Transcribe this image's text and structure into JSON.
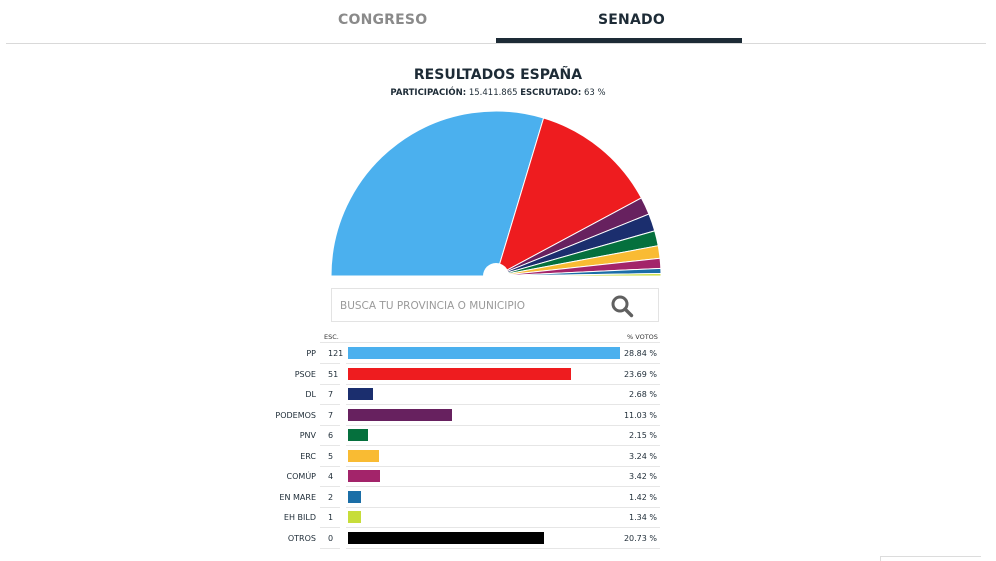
{
  "tabs": [
    {
      "label": "CONGRESO",
      "active": false
    },
    {
      "label": "SENADO",
      "active": true
    }
  ],
  "header": {
    "title": "RESULTADOS ESPAÑA",
    "participacion_label": "PARTICIPACIÓN:",
    "participacion_value": "15.411.865",
    "escrutado_label": "ESCRUTADO:",
    "escrutado_value": "63 %"
  },
  "search": {
    "placeholder": "BUSCA TU PROVINCIA O MUNICIPIO",
    "value": ""
  },
  "table": {
    "seats_header": "ESC.",
    "votes_header": "% VOTOS"
  },
  "chart_data": {
    "type": "bar",
    "title": "RESULTADOS ESPAÑA",
    "categories": [
      "PP",
      "PSOE",
      "DL",
      "PODEMOS",
      "PNV",
      "ERC",
      "COMÚP",
      "EN MARE",
      "EH BILD",
      "OTROS"
    ],
    "seats": [
      121,
      51,
      7,
      7,
      6,
      5,
      4,
      2,
      1,
      0
    ],
    "vote_pct": [
      28.84,
      23.69,
      2.68,
      11.03,
      2.15,
      3.24,
      3.42,
      1.42,
      1.34,
      20.73
    ],
    "vote_pct_labels": [
      "28.84 %",
      "23.69 %",
      "2.68 %",
      "11.03 %",
      "2.15 %",
      "3.24 %",
      "3.42 %",
      "1.42 %",
      "1.34 %",
      "20.73 %"
    ],
    "colors": [
      "#4bb0ee",
      "#ee1c1f",
      "#1b2e6e",
      "#67215f",
      "#05703d",
      "#f9bb33",
      "#a3246a",
      "#1b6ea7",
      "#c7dd3a",
      "#000000"
    ],
    "hemicycle": {
      "type": "pie",
      "note_order": "seat arcs left to right",
      "parties": [
        "PP",
        "PSOE",
        "PODEMOS",
        "DL",
        "PNV",
        "ERC",
        "COMÚP",
        "EN MARE",
        "EH BILD"
      ],
      "seats": [
        121,
        51,
        7,
        7,
        6,
        5,
        4,
        2,
        1
      ]
    }
  }
}
